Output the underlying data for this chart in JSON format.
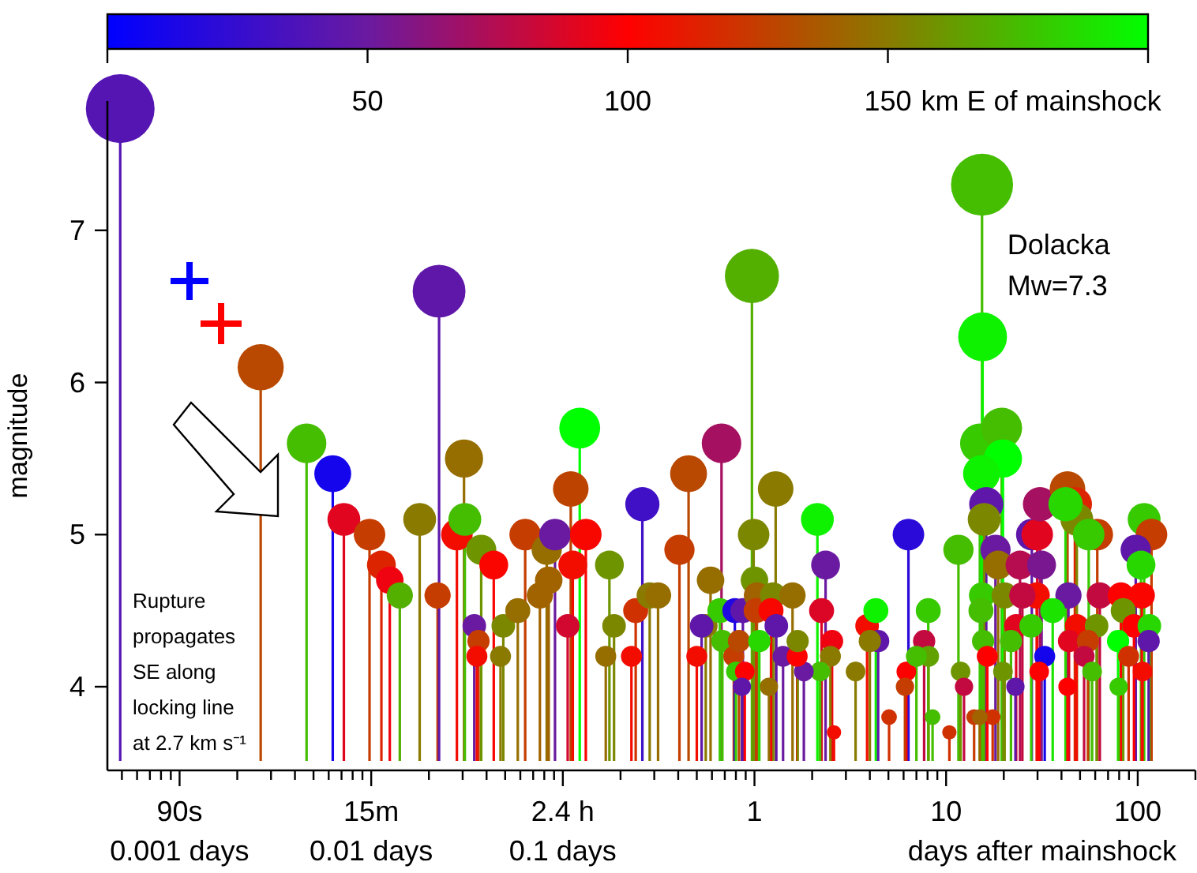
{
  "chart_data": {
    "type": "lollipop",
    "xlabel": "days after mainshock",
    "ylabel": "magnitude",
    "clabel": "km E of mainshock",
    "log": "x",
    "grid": false,
    "marker": "circle",
    "xlim": [
      0.00042,
      200
    ],
    "ylim": [
      3.45,
      7.85
    ],
    "yticks": [
      4,
      5,
      6,
      7
    ],
    "xticks": [
      {
        "value": 0.0005,
        "label": null
      },
      {
        "value": 0.0006,
        "label": null
      },
      {
        "value": 0.0007,
        "label": null
      },
      {
        "value": 0.0008,
        "label": null
      },
      {
        "value": 0.0009,
        "label": null
      },
      {
        "value": 0.001,
        "label": "90s\n0.001 days"
      },
      {
        "value": 0.002,
        "label": null
      },
      {
        "value": 0.003,
        "label": null
      },
      {
        "value": 0.004,
        "label": null
      },
      {
        "value": 0.005,
        "label": null
      },
      {
        "value": 0.006,
        "label": null
      },
      {
        "value": 0.007,
        "label": null
      },
      {
        "value": 0.008,
        "label": null
      },
      {
        "value": 0.009,
        "label": null
      },
      {
        "value": 0.01,
        "label": "15m\n0.01 days"
      },
      {
        "value": 0.02,
        "label": null
      },
      {
        "value": 0.03,
        "label": null
      },
      {
        "value": 0.04,
        "label": null
      },
      {
        "value": 0.05,
        "label": null
      },
      {
        "value": 0.06,
        "label": null
      },
      {
        "value": 0.07,
        "label": null
      },
      {
        "value": 0.08,
        "label": null
      },
      {
        "value": 0.09,
        "label": null
      },
      {
        "value": 0.1,
        "label": "2.4 h\n0.1 days"
      },
      {
        "value": 0.2,
        "label": null
      },
      {
        "value": 0.3,
        "label": null
      },
      {
        "value": 0.4,
        "label": null
      },
      {
        "value": 0.5,
        "label": null
      },
      {
        "value": 0.6,
        "label": null
      },
      {
        "value": 0.7,
        "label": null
      },
      {
        "value": 0.8,
        "label": null
      },
      {
        "value": 0.9,
        "label": null
      },
      1,
      {
        "value": 2,
        "label": null
      },
      {
        "value": 3,
        "label": null
      },
      {
        "value": 4,
        "label": null
      },
      {
        "value": 5,
        "label": null
      },
      {
        "value": 6,
        "label": null
      },
      {
        "value": 7,
        "label": null
      },
      {
        "value": 8,
        "label": null
      },
      {
        "value": 9,
        "label": null
      },
      10,
      {
        "value": 20,
        "label": null
      },
      {
        "value": 30,
        "label": null
      },
      {
        "value": 40,
        "label": null
      },
      {
        "value": 50,
        "label": null
      },
      {
        "value": 60,
        "label": null
      },
      {
        "value": 70,
        "label": null
      },
      {
        "value": 80,
        "label": null
      },
      {
        "value": 90,
        "label": null
      },
      100,
      {
        "value": 200,
        "label": null
      }
    ],
    "clim": [
      0,
      200
    ],
    "cticks": [
      {
        "value": 0,
        "label": null
      },
      50,
      100,
      150,
      {
        "value": 200,
        "label": null
      }
    ],
    "annotations": [
      {
        "text": "Dolacka\nMw=7.3",
        "x": 15.4,
        "y": 7.3
      },
      "Rupture\npropagates\nSE along\nlocking line\nat 2.7 km s⁻¹"
    ],
    "series": [
      {
        "x": [
          0.00049,
          0.00265,
          0.0046,
          0.0063,
          0.0072,
          0.0098,
          0.0113,
          0.0125,
          0.0141,
          0.0179,
          0.0222,
          0.0226,
          0.028,
          0.0305,
          0.0308,
          0.0375,
          0.0436,
          0.0345,
          0.0363,
          0.0356,
          0.0489,
          0.0473,
          0.0582,
          0.0636,
          0.0824,
          0.091,
          0.0759,
          0.0844,
          0.11,
          0.1225,
          0.1127,
          0.1318,
          0.106,
          0.1675,
          0.185,
          0.175,
          0.24,
          0.228,
          0.26,
          0.284,
          0.314,
          0.406,
          0.453,
          0.673,
          0.5,
          0.59,
          0.557,
          0.66,
          0.68,
          0.78,
          0.79,
          0.87,
          0.8,
          0.89,
          0.86,
          0.97,
          0.99,
          1.0,
          1.03,
          1.02,
          1.25,
          1.22,
          1.29,
          1.3,
          1.19,
          1.41,
          2.13,
          2.35,
          2.24,
          2.54,
          2.49,
          2.2,
          2.6,
          1.81,
          1.67,
          1.68,
          1.58,
          0.53,
          0.83,
          1.06,
          3.37,
          3.87,
          4.3,
          4.42,
          4.0,
          5.04,
          6.36,
          6.2,
          6.1,
          7.68,
          8.07,
          8.1,
          7.0,
          8.5,
          10.4,
          11.6,
          11.9,
          12.4,
          15.4,
          15.5,
          15.0,
          19.5,
          19.8,
          15.3,
          16.2,
          15.8,
          18.1,
          18.7,
          15.4,
          20.2,
          15.2,
          15.6,
          24.3,
          28,
          29.9,
          31.5,
          30.9,
          43,
          47,
          48.1,
          42,
          61.5,
          55.5,
          108,
          118,
          97.6,
          104,
          29.7,
          43.5,
          63.4,
          81.7,
          105,
          84,
          36,
          25,
          23.2,
          27.8,
          48,
          61,
          95.6,
          115,
          21.8,
          43.8,
          55,
          79,
          114,
          16.4,
          32.7,
          52.5,
          89.6,
          19.8,
          30.6,
          57.8,
          106,
          17.5,
          14,
          23,
          43,
          79.5,
          15
        ],
        "values": [
          7.8,
          6.1,
          5.6,
          5.4,
          5.1,
          5.0,
          4.8,
          4.7,
          4.6,
          5.1,
          4.6,
          6.6,
          5.0,
          5.5,
          5.1,
          4.9,
          4.8,
          4.4,
          4.3,
          4.2,
          4.4,
          4.2,
          4.5,
          5.0,
          4.9,
          5.0,
          4.6,
          4.7,
          5.3,
          5.7,
          4.8,
          5.0,
          4.4,
          4.2,
          4.4,
          4.8,
          4.5,
          4.2,
          5.2,
          4.6,
          4.6,
          4.9,
          5.4,
          5.6,
          4.2,
          4.7,
          4.4,
          4.5,
          4.3,
          4.2,
          4.5,
          4.5,
          4.1,
          4.1,
          4.0,
          6.7,
          5.0,
          4.7,
          4.6,
          4.5,
          4.6,
          4.5,
          5.3,
          4.4,
          4.0,
          4.2,
          5.1,
          4.8,
          4.5,
          4.3,
          4.2,
          4.1,
          3.7,
          4.1,
          4.2,
          4.3,
          4.6,
          4.4,
          4.3,
          4.3,
          4.1,
          4.4,
          4.5,
          4.3,
          4.3,
          3.8,
          5.0,
          4.1,
          4.0,
          4.3,
          4.5,
          4.2,
          4.2,
          3.8,
          3.7,
          4.9,
          4.1,
          4.0,
          7.3,
          6.3,
          5.6,
          5.7,
          5.5,
          5.4,
          5.2,
          5.1,
          4.9,
          4.8,
          4.6,
          4.6,
          4.5,
          4.3,
          4.8,
          5.0,
          5.0,
          4.8,
          5.2,
          5.3,
          5.2,
          5.1,
          5.2,
          5.0,
          5.0,
          5.1,
          5.0,
          4.9,
          4.8,
          4.6,
          4.6,
          4.6,
          4.6,
          4.6,
          4.5,
          4.5,
          4.6,
          4.4,
          4.4,
          4.4,
          4.4,
          4.4,
          4.4,
          4.3,
          4.3,
          4.3,
          4.3,
          4.3,
          4.2,
          4.2,
          4.2,
          4.2,
          4.1,
          4.1,
          4.1,
          4.1,
          3.8,
          3.8,
          4.0,
          4.0,
          4.0,
          3.8
        ],
        "sizes": [
          1,
          0.451,
          0.331,
          0.288,
          0.229,
          0.211,
          0.177,
          0.161,
          0.146,
          0.229,
          0.146,
          0.59,
          0.211,
          0.309,
          0.229,
          0.194,
          0.177,
          0.118,
          0.105,
          0.093,
          0.118,
          0.093,
          0.132,
          0.211,
          0.194,
          0.211,
          0.146,
          0.161,
          0.268,
          0.354,
          0.177,
          0.211,
          0.118,
          0.093,
          0.118,
          0.177,
          0.132,
          0.093,
          0.248,
          0.146,
          0.146,
          0.194,
          0.288,
          0.331,
          0.093,
          0.161,
          0.118,
          0.132,
          0.105,
          0.093,
          0.132,
          0.132,
          0.082,
          0.082,
          0.071,
          0.62,
          0.211,
          0.161,
          0.146,
          0.132,
          0.146,
          0.132,
          0.268,
          0.118,
          0.071,
          0.093,
          0.229,
          0.177,
          0.132,
          0.105,
          0.093,
          0.082,
          0.044,
          0.082,
          0.093,
          0.105,
          0.146,
          0.118,
          0.105,
          0.105,
          0.082,
          0.118,
          0.132,
          0.105,
          0.105,
          0.052,
          0.211,
          0.082,
          0.071,
          0.105,
          0.132,
          0.093,
          0.093,
          0.052,
          0.044,
          0.194,
          0.082,
          0.071,
          0.816,
          0.505,
          0.331,
          0.354,
          0.309,
          0.288,
          0.248,
          0.229,
          0.194,
          0.177,
          0.146,
          0.146,
          0.132,
          0.105,
          0.177,
          0.211,
          0.211,
          0.177,
          0.248,
          0.268,
          0.248,
          0.229,
          0.248,
          0.211,
          0.211,
          0.229,
          0.211,
          0.194,
          0.177,
          0.146,
          0.146,
          0.146,
          0.146,
          0.146,
          0.132,
          0.132,
          0.146,
          0.118,
          0.118,
          0.118,
          0.118,
          0.118,
          0.118,
          0.105,
          0.105,
          0.105,
          0.105,
          0.105,
          0.093,
          0.093,
          0.093,
          0.093,
          0.082,
          0.082,
          0.082,
          0.082,
          0.052,
          0.052,
          0.071,
          0.071,
          0.071,
          0.052
        ],
        "cvalues": [
          40,
          130,
          175,
          10,
          90,
          125,
          115,
          95,
          170,
          150,
          125,
          45,
          105,
          145,
          175,
          160,
          102,
          50,
          125,
          105,
          155,
          150,
          145,
          125,
          145,
          50,
          140,
          140,
          128,
          200,
          105,
          103,
          85,
          145,
          155,
          160,
          120,
          105,
          30,
          150,
          145,
          125,
          130,
          70,
          105,
          145,
          150,
          180,
          175,
          125,
          15,
          45,
          180,
          100,
          45,
          170,
          155,
          160,
          140,
          125,
          155,
          103,
          150,
          45,
          145,
          50,
          195,
          50,
          88,
          95,
          150,
          175,
          105,
          50,
          100,
          155,
          145,
          45,
          130,
          185,
          150,
          105,
          195,
          45,
          150,
          120,
          20,
          100,
          125,
          80,
          180,
          165,
          175,
          175,
          120,
          175,
          160,
          80,
          175,
          195,
          180,
          175,
          200,
          195,
          45,
          155,
          50,
          145,
          180,
          155,
          175,
          175,
          75,
          45,
          90,
          55,
          70,
          130,
          115,
          155,
          185,
          125,
          180,
          180,
          125,
          45,
          185,
          105,
          50,
          80,
          100,
          102,
          160,
          190,
          80,
          90,
          180,
          105,
          160,
          100,
          185,
          175,
          90,
          125,
          200,
          45,
          100,
          10,
          80,
          120,
          160,
          100,
          175,
          105,
          120,
          125,
          45,
          100,
          180,
          140
        ]
      }
    ]
  }
}
